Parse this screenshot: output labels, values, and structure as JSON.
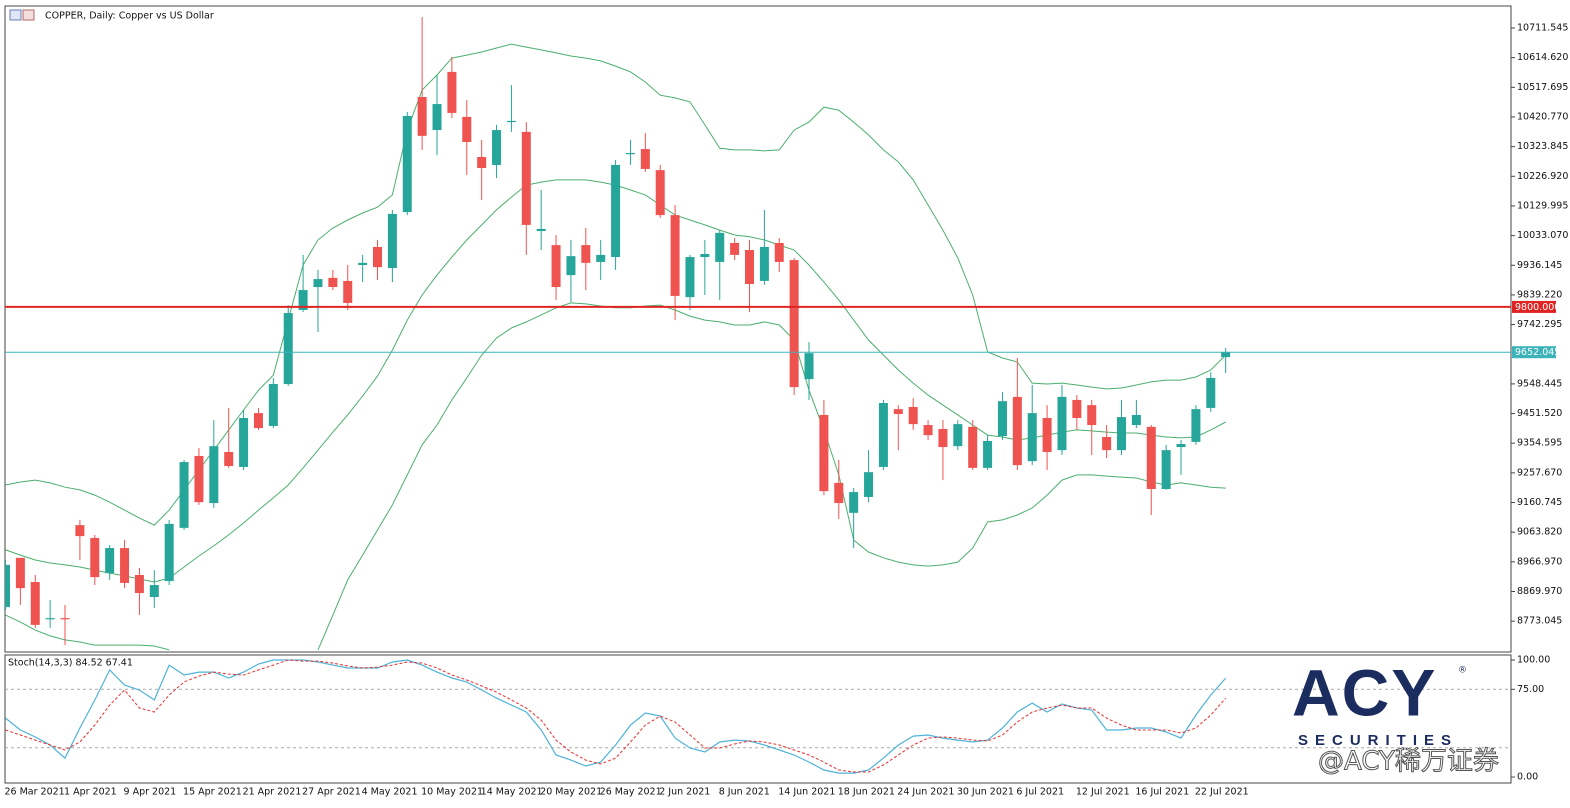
{
  "chart_data": {
    "type": "candlestick",
    "title": "COPPER, Daily:  Copper vs US Dollar",
    "categories": [
      "26 Mar 2021",
      null,
      null,
      null,
      "1 Apr 2021",
      null,
      null,
      null,
      "9 Apr 2021",
      null,
      null,
      null,
      "15 Apr 2021",
      null,
      null,
      null,
      "21 Apr 2021",
      null,
      null,
      null,
      "27 Apr 2021",
      null,
      null,
      null,
      "4 May 2021",
      null,
      null,
      null,
      "10 May 2021",
      null,
      null,
      null,
      "14 May 2021",
      null,
      null,
      null,
      "20 May 2021",
      null,
      null,
      null,
      "26 May 2021",
      null,
      null,
      null,
      "2 Jun 2021",
      null,
      null,
      null,
      "8 Jun 2021",
      null,
      null,
      null,
      "14 Jun 2021",
      null,
      null,
      null,
      "18 Jun 2021",
      null,
      null,
      null,
      "24 Jun 2021",
      null,
      null,
      null,
      "30 Jun 2021",
      null,
      null,
      null,
      "6 Jul 2021",
      null,
      null,
      null,
      "12 Jul 2021",
      null,
      null,
      null,
      "16 Jul 2021",
      null,
      null,
      null,
      "22 Jul 2021",
      null,
      null
    ],
    "open": [
      8819,
      8980,
      8901,
      8780,
      8783,
      9087,
      9045,
      8930,
      9012,
      8924,
      8852,
      8904,
      9078,
      9313,
      9159,
      9326,
      9277,
      9453,
      9411,
      9548,
      9790,
      9865,
      9895,
      9885,
      9937,
      9996,
      9927,
      10110,
      10486,
      10378,
      10568,
      10421,
      10290,
      10264,
      10404,
      10372,
      10048,
      10002,
      9904,
      10002,
      9947,
      9963,
      10300,
      10316,
      10247,
      10100,
      9832,
      9963,
      9947,
      10009,
      9986,
      9885,
      10009,
      9953,
      9564,
      9447,
      9225,
      9127,
      9179,
      9277,
      9466,
      9473,
      9414,
      9401,
      9345,
      9408,
      9274,
      9378,
      9506,
      9296,
      9437,
      9332,
      9496,
      9479,
      9375,
      9332,
      9414,
      9408,
      9205,
      9342,
      9359,
      9470,
      9636
    ],
    "high": [
      8973,
      8980,
      8924,
      8842,
      8826,
      9104,
      9055,
      9022,
      9038,
      8947,
      8940,
      9104,
      9300,
      9339,
      9430,
      9470,
      9463,
      9470,
      9568,
      9806,
      9970,
      9921,
      9921,
      9937,
      9970,
      10019,
      10117,
      10437,
      10747,
      10558,
      10617,
      10476,
      10346,
      10395,
      10525,
      10404,
      10182,
      10035,
      10019,
      10058,
      10019,
      10280,
      10346,
      10368,
      10264,
      10133,
      9970,
      10019,
      10051,
      10025,
      10019,
      10117,
      10025,
      9960,
      9685,
      9496,
      9300,
      9208,
      9332,
      9496,
      9479,
      9502,
      9430,
      9430,
      9430,
      9430,
      9381,
      9522,
      9633,
      9545,
      9479,
      9545,
      9512,
      9496,
      9414,
      9496,
      9496,
      9414,
      9349,
      9365,
      9479,
      9587,
      9666
    ],
    "low": [
      8810,
      8826,
      8751,
      8751,
      8695,
      8973,
      8891,
      8908,
      8881,
      8793,
      8816,
      8891,
      9071,
      9153,
      9143,
      9274,
      9267,
      9398,
      9404,
      9542,
      9783,
      9718,
      9855,
      9790,
      9881,
      9888,
      9881,
      10100,
      10313,
      10296,
      10417,
      10231,
      10149,
      10221,
      10372,
      9970,
      9986,
      9823,
      9816,
      9855,
      9888,
      9921,
      10264,
      10241,
      10091,
      9757,
      9790,
      9839,
      9823,
      9953,
      9783,
      9872,
      9914,
      9512,
      9496,
      9185,
      9107,
      9012,
      9162,
      9267,
      9332,
      9398,
      9365,
      9234,
      9332,
      9267,
      9267,
      9365,
      9267,
      9283,
      9267,
      9316,
      9398,
      9316,
      9306,
      9316,
      9404,
      9120,
      9202,
      9251,
      9349,
      9457,
      9584
    ],
    "close": [
      8957,
      8881,
      8761,
      8783,
      8780,
      9051,
      8917,
      9012,
      8898,
      8865,
      8891,
      9091,
      9293,
      9162,
      9345,
      9280,
      9437,
      9404,
      9548,
      9780,
      9855,
      9891,
      9865,
      9813,
      9944,
      9930,
      10104,
      10424,
      10359,
      10463,
      10434,
      10339,
      10254,
      10378,
      10408,
      10068,
      10055,
      9865,
      9966,
      9944,
      9970,
      10264,
      10303,
      10251,
      10100,
      9836,
      9963,
      9973,
      10042,
      9970,
      9875,
      9996,
      9947,
      9538,
      9649,
      9198,
      9159,
      9195,
      9260,
      9486,
      9450,
      9417,
      9381,
      9342,
      9417,
      9274,
      9362,
      9492,
      9283,
      9453,
      9326,
      9506,
      9437,
      9414,
      9332,
      9440,
      9447,
      9205,
      9332,
      9352,
      9466,
      9568,
      9652.045
    ],
    "up_color": "#26a69a",
    "down_color": "#ef5350",
    "ylim": [
      8672.3,
      10783.4
    ],
    "yticks": [
      10711.545,
      {
        "value": 10614.62,
        "label": "10614.620"
      },
      10517.695,
      {
        "value": 10420.77,
        "label": "10420.770"
      },
      10323.845,
      {
        "value": 10226.92,
        "label": "10226.920"
      },
      10129.995,
      {
        "value": 10033.07,
        "label": "10033.070"
      },
      9936.145,
      {
        "value": 9839.22,
        "label": "9839.220"
      },
      9742.295,
      9548.445,
      {
        "value": 9451.52,
        "label": "9451.520"
      },
      9354.595,
      {
        "value": 9257.67,
        "label": "9257.670"
      },
      9160.745,
      {
        "value": 9063.82,
        "label": "9063.820"
      },
      {
        "value": 8966.97,
        "label": "8966.970"
      },
      {
        "value": 8869.97,
        "label": "8869.970"
      },
      8773.045
    ],
    "bands": {
      "color": "#4caf6e",
      "upper": [
        9218,
        9228,
        9234,
        9225,
        9211,
        9202,
        9185,
        9162,
        9136,
        9110,
        9087,
        9136,
        9202,
        9267,
        9332,
        9398,
        9463,
        9528,
        9577,
        9757,
        9937,
        10019,
        10058,
        10084,
        10107,
        10126,
        10166,
        10378,
        10509,
        10558,
        10613,
        10623,
        10633,
        10646,
        10659,
        10649,
        10640,
        10630,
        10620,
        10613,
        10604,
        10587,
        10568,
        10535,
        10492,
        10483,
        10470,
        10395,
        10319,
        10313,
        10313,
        10310,
        10313,
        10378,
        10404,
        10453,
        10443,
        10404,
        10362,
        10313,
        10274,
        10215,
        10133,
        10051,
        9960,
        9839,
        9653,
        9633,
        9620,
        9551,
        9548,
        9551,
        9545,
        9538,
        9532,
        9535,
        9545,
        9555,
        9561,
        9561,
        9571,
        9594,
        9643
      ],
      "middle": [
        9006,
        8989,
        8973,
        8963,
        8957,
        8950,
        8940,
        8930,
        8921,
        8911,
        8901,
        8914,
        8950,
        8986,
        9019,
        9055,
        9094,
        9136,
        9176,
        9218,
        9274,
        9332,
        9391,
        9447,
        9509,
        9574,
        9659,
        9757,
        9839,
        9904,
        9963,
        10019,
        10068,
        10117,
        10159,
        10198,
        10208,
        10215,
        10215,
        10215,
        10208,
        10198,
        10182,
        10166,
        10133,
        10100,
        10084,
        10068,
        10051,
        10035,
        10029,
        10019,
        10002,
        9986,
        9937,
        9881,
        9823,
        9757,
        9692,
        9643,
        9594,
        9551,
        9512,
        9479,
        9447,
        9414,
        9381,
        9375,
        9365,
        9372,
        9381,
        9391,
        9398,
        9395,
        9391,
        9388,
        9388,
        9381,
        9375,
        9372,
        9375,
        9398,
        9424
      ],
      "lower": [
        8793,
        8770,
        8744,
        8725,
        8712,
        8705,
        8695,
        8695,
        8695,
        8695,
        8692,
        8679,
        null,
        null,
        null,
        null,
        null,
        null,
        null,
        null,
        null,
        8679,
        8793,
        8908,
        8989,
        9071,
        9153,
        9251,
        9349,
        9414,
        9496,
        9568,
        9643,
        9698,
        9731,
        9751,
        9774,
        9797,
        9813,
        9810,
        9803,
        9797,
        9797,
        9803,
        9806,
        9790,
        9770,
        9757,
        9751,
        9741,
        9741,
        9751,
        9741,
        9692,
        9528,
        9398,
        9251,
        9038,
        8999,
        8980,
        8966,
        8957,
        8953,
        8957,
        8966,
        9012,
        9097,
        9104,
        9120,
        9143,
        9185,
        9234,
        9251,
        9251,
        9247,
        9244,
        9241,
        9228,
        9218,
        9225,
        9218,
        9211,
        9208
      ]
    },
    "hlines": [
      {
        "value": 9800,
        "label": "9800.000",
        "color": "#e02424"
      },
      {
        "value": 9652.045,
        "color": "#3bb3b8"
      }
    ],
    "stoch": {
      "title": "Stoch(14,3,3) 84.52 67.41",
      "k_color": "#4fb3d9",
      "d_color": "#e83030",
      "ylim": [
        -5.1,
        104.3
      ],
      "yticks": [
        {
          "value": 100,
          "label": "100.00"
        },
        {
          "value": 75,
          "label": "75.00"
        },
        {
          "value": 0,
          "label": "0.00"
        }
      ],
      "levels": [
        75,
        25
      ],
      "k": [
        50.4,
        40.2,
        34.2,
        27.4,
        16.2,
        41.9,
        65.8,
        91.5,
        78.6,
        74.4,
        65.8,
        95.7,
        87.2,
        89.7,
        89.7,
        84.6,
        89.7,
        96.6,
        100,
        100,
        100,
        98.3,
        95.7,
        93.2,
        93.2,
        93.2,
        98.3,
        100,
        95.7,
        89.7,
        84.6,
        81.2,
        74.4,
        67.5,
        61.5,
        55.6,
        40.2,
        18.8,
        14.5,
        9.4,
        12.8,
        27.4,
        44.4,
        54.7,
        52.1,
        33.3,
        24.8,
        21.4,
        29.9,
        31.6,
        30.8,
        27.4,
        23.1,
        18.8,
        12.8,
        6.0,
        3.4,
        3.4,
        6.0,
        16.2,
        27.4,
        35.0,
        35.9,
        33.3,
        31.6,
        29.9,
        31.6,
        41.9,
        55.6,
        63.2,
        55.6,
        62.4,
        59.0,
        57.3,
        40.2,
        40.2,
        41.9,
        41.9,
        38.5,
        33.3,
        53.0,
        70.1,
        84.52
      ],
      "d": [
        40.2,
        35.9,
        31.6,
        27.4,
        23.1,
        29.9,
        44.4,
        61.5,
        74.4,
        59.0,
        55.6,
        70.1,
        81.2,
        86.3,
        89.7,
        88.0,
        87.2,
        91.5,
        95.7,
        100,
        99.1,
        99.1,
        97.4,
        94.9,
        93.2,
        94.0,
        95.7,
        98.3,
        97.4,
        93.2,
        87.2,
        82.9,
        77.8,
        72.6,
        65.8,
        59.0,
        48.7,
        31.6,
        21.4,
        14.5,
        11.1,
        16.2,
        29.9,
        44.4,
        52.1,
        47.0,
        35.9,
        24.8,
        24.8,
        28.2,
        30.8,
        29.9,
        27.4,
        23.1,
        18.8,
        12.8,
        6.0,
        4.3,
        4.3,
        10.3,
        18.8,
        27.4,
        33.3,
        34.2,
        33.3,
        31.6,
        30.8,
        35.9,
        47.0,
        55.6,
        59.0,
        61.5,
        59.0,
        59.0,
        50.4,
        44.4,
        40.2,
        40.2,
        40.2,
        37.6,
        41.9,
        53.0,
        67.41
      ]
    },
    "logo": {
      "name": "ACY",
      "mark": "®",
      "subtitle": "SECURITIES"
    },
    "watermark": "@ACY稀万证券"
  }
}
